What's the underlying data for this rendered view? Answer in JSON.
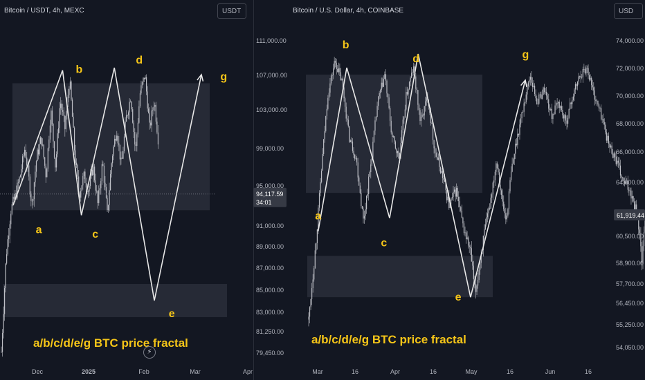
{
  "colors": {
    "background": "#131722",
    "candle": "#c5c7cd",
    "zone": "#2a2e39",
    "wave": "#e8e8e8",
    "label": "#f5c518",
    "axis_text": "#b2b5be",
    "price_tag": "#363a45"
  },
  "panels": {
    "left": {
      "title": "Bitcoin / USDT, 4h, MEXC",
      "currency": "USDT",
      "price_tag": {
        "value": "94,117.59",
        "countdown": "34:01"
      },
      "chart_data": {
        "type": "candlestick",
        "symbol": "Bitcoin / USDT",
        "interval": "4h",
        "exchange": "MEXC",
        "y_ticks": [
          "111,000.00",
          "107,000.00",
          "103,000.00",
          "99,000.00",
          "95,000.00",
          "91,000.00",
          "89,000.00",
          "87,000.00",
          "85,000.00",
          "83,000.00",
          "81,250.00",
          "79,450.00"
        ],
        "x_ticks": [
          "Dec",
          "2025",
          "Feb",
          "Mar",
          "Apr"
        ],
        "price_path": [
          [
            0,
            79500
          ],
          [
            4,
            88000
          ],
          [
            8,
            92500
          ],
          [
            12,
            94000
          ],
          [
            16,
            96000
          ],
          [
            20,
            99000
          ],
          [
            26,
            93000
          ],
          [
            30,
            98000
          ],
          [
            34,
            100000
          ],
          [
            38,
            96000
          ],
          [
            42,
            103000
          ],
          [
            46,
            97000
          ],
          [
            50,
            104000
          ],
          [
            54,
            101000
          ],
          [
            58,
            106500
          ],
          [
            62,
            99000
          ],
          [
            66,
            94000
          ],
          [
            70,
            96000
          ],
          [
            74,
            94500
          ],
          [
            78,
            97000
          ],
          [
            82,
            93000
          ],
          [
            86,
            97500
          ],
          [
            90,
            92000
          ],
          [
            94,
            98000
          ],
          [
            98,
            101000
          ],
          [
            102,
            97000
          ],
          [
            106,
            102000
          ],
          [
            110,
            104500
          ],
          [
            114,
            98500
          ],
          [
            118,
            105000
          ],
          [
            122,
            107000
          ],
          [
            126,
            101000
          ],
          [
            130,
            104000
          ],
          [
            134,
            99000
          ]
        ],
        "zones": [
          {
            "from": 0,
            "to": 180,
            "low": 92500,
            "high": 106000
          },
          {
            "from": 0,
            "to": 180,
            "low": 82500,
            "high": 85500
          }
        ],
        "projection": [
          [
            10,
            93000
          ],
          [
            52,
            107500
          ],
          [
            68,
            92000
          ],
          [
            96,
            107800
          ],
          [
            130,
            84000
          ],
          [
            170,
            107000
          ]
        ],
        "wave_labels": [
          {
            "label": "a",
            "x": 8,
            "price": 92000
          },
          {
            "label": "b",
            "x": 55,
            "price": 107200
          },
          {
            "label": "c",
            "x": 76,
            "price": 91000
          },
          {
            "label": "d",
            "x": 112,
            "price": 107800
          },
          {
            "label": "e",
            "x": 141,
            "price": 84000
          },
          {
            "label": "g",
            "x": 192,
            "price": 107000
          }
        ],
        "annotation": "a/b/c/d/e/g BTC price fractal"
      }
    },
    "right": {
      "title": "Bitcoin / U.S. Dollar, 4h, COINBASE",
      "currency": "USD",
      "price_tag": {
        "value": "61,919.44"
      },
      "chart_data": {
        "type": "candlestick",
        "symbol": "Bitcoin / U.S. Dollar",
        "interval": "4h",
        "exchange": "COINBASE",
        "y_ticks": [
          "74,000.00",
          "72,000.00",
          "70,000.00",
          "68,000.00",
          "66,000.00",
          "64,000.00",
          "61,919.44",
          "60,500.00",
          "58,900.00",
          "57,700.00",
          "56,450.00",
          "55,250.00",
          "54,050.00"
        ],
        "x_ticks": [
          "Mar",
          "16",
          "Apr",
          "16",
          "May",
          "16",
          "Jun",
          "16"
        ],
        "price_path": [
          [
            0,
            55500
          ],
          [
            6,
            60000
          ],
          [
            10,
            64000
          ],
          [
            16,
            70000
          ],
          [
            22,
            72500
          ],
          [
            28,
            71000
          ],
          [
            34,
            67000
          ],
          [
            40,
            65500
          ],
          [
            46,
            61500
          ],
          [
            52,
            65000
          ],
          [
            58,
            69500
          ],
          [
            64,
            71500
          ],
          [
            70,
            67000
          ],
          [
            76,
            65500
          ],
          [
            82,
            70000
          ],
          [
            88,
            72000
          ],
          [
            94,
            68000
          ],
          [
            100,
            70000
          ],
          [
            106,
            66000
          ],
          [
            112,
            64500
          ],
          [
            118,
            62500
          ],
          [
            124,
            63500
          ],
          [
            130,
            61000
          ],
          [
            136,
            59500
          ],
          [
            140,
            57000
          ],
          [
            146,
            60000
          ],
          [
            152,
            62500
          ],
          [
            158,
            65500
          ],
          [
            162,
            63000
          ],
          [
            166,
            61500
          ],
          [
            170,
            64500
          ],
          [
            174,
            66500
          ],
          [
            180,
            69000
          ],
          [
            186,
            71500
          ],
          [
            192,
            69500
          ],
          [
            198,
            70500
          ],
          [
            204,
            68500
          ],
          [
            210,
            69500
          ],
          [
            216,
            68000
          ],
          [
            222,
            70000
          ],
          [
            228,
            71500
          ],
          [
            234,
            72000
          ],
          [
            240,
            70000
          ],
          [
            246,
            68500
          ],
          [
            252,
            66500
          ],
          [
            258,
            65500
          ],
          [
            264,
            64000
          ],
          [
            270,
            63500
          ],
          [
            276,
            62000
          ],
          [
            280,
            59000
          ],
          [
            284,
            62500
          ]
        ],
        "zones": [
          {
            "from": 0,
            "to": 165,
            "low": 63300,
            "high": 71500
          },
          {
            "from": 0,
            "to": 165,
            "low": 56800,
            "high": 59300
          }
        ],
        "projection": [
          [
            8,
            60800
          ],
          [
            32,
            72000
          ],
          [
            68,
            61700
          ],
          [
            92,
            73000
          ],
          [
            136,
            56800
          ],
          [
            182,
            71100
          ]
        ],
        "wave_labels": [
          {
            "label": "a",
            "x": 10,
            "price": 62500
          },
          {
            "label": "b",
            "x": 33,
            "price": 73000
          },
          {
            "label": "c",
            "x": 63,
            "price": 60800
          },
          {
            "label": "d",
            "x": 92,
            "price": 72300
          },
          {
            "label": "e",
            "x": 130,
            "price": 57300
          },
          {
            "label": "g",
            "x": 184,
            "price": 72300
          }
        ],
        "annotation": "a/b/c/d/e/g BTC price fractal"
      }
    }
  }
}
